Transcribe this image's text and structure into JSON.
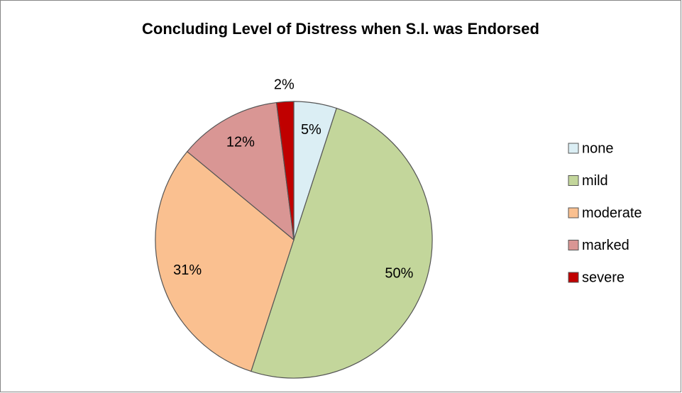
{
  "chart_data": {
    "type": "pie",
    "title": "Concluding Level of Distress when S.I. was Endorsed",
    "categories": [
      "none",
      "mild",
      "moderate",
      "marked",
      "severe"
    ],
    "values": [
      5,
      50,
      31,
      12,
      2
    ],
    "value_labels": [
      "5%",
      "50%",
      "31%",
      "12%",
      "2%"
    ],
    "colors": [
      "#dbeef4",
      "#c3d69b",
      "#fac090",
      "#d99694",
      "#c00000"
    ],
    "legend": "right"
  }
}
